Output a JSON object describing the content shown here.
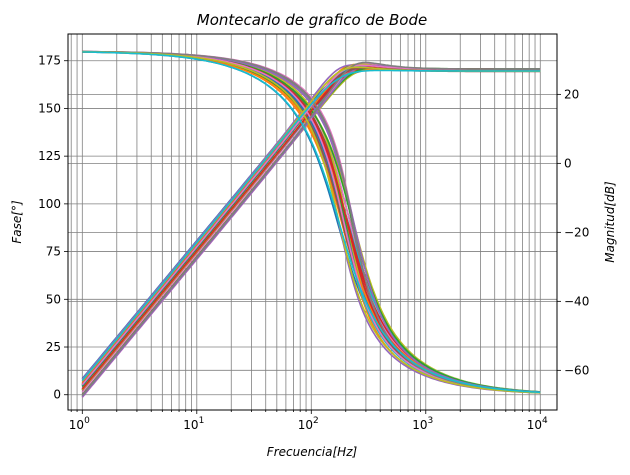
{
  "chart_data": {
    "type": "line",
    "title": "Montecarlo de grafico de Bode",
    "xlabel": "Frecuencia[Hz]",
    "ylabel_left": "Fase[°]",
    "ylabel_right": "Magnitud[dB]",
    "xscale": "log",
    "xlim": [
      0.75,
      14000
    ],
    "ylim_left": [
      -8,
      189
    ],
    "ylim_right": [
      -71.5,
      37.5
    ],
    "x_ticks": [
      {
        "value": 1,
        "base": "10",
        "exp": "0"
      },
      {
        "value": 10,
        "base": "10",
        "exp": "1"
      },
      {
        "value": 100,
        "base": "10",
        "exp": "2"
      },
      {
        "value": 1000,
        "base": "10",
        "exp": "3"
      },
      {
        "value": 10000,
        "base": "10",
        "exp": "4"
      }
    ],
    "y_left_ticks": [
      "0",
      "25",
      "50",
      "75",
      "100",
      "125",
      "150",
      "175"
    ],
    "y_right_ticks": [
      "−60",
      "−40",
      "−20",
      "0",
      "20"
    ],
    "grid": true,
    "legend": "none",
    "series_palette": [
      "#1f77b4",
      "#ff7f0e",
      "#2ca02c",
      "#d62728",
      "#9467bd",
      "#8c564b",
      "#e377c2",
      "#7f7f7f",
      "#bcbd22",
      "#17becf"
    ],
    "phase_series": {
      "axis": "left",
      "description_points": [
        {
          "x": 1,
          "y": 180
        },
        {
          "x": 10,
          "y": 177.5
        },
        {
          "x": 30,
          "y": 172
        },
        {
          "x": 70,
          "y": 158
        },
        {
          "x": 120,
          "y": 130
        },
        {
          "x": 160,
          "y": 90
        },
        {
          "x": 200,
          "y": 55
        },
        {
          "x": 250,
          "y": 30
        },
        {
          "x": 500,
          "y": 12
        },
        {
          "x": 1000,
          "y": 6
        },
        {
          "x": 10000,
          "y": 1
        }
      ],
      "center_frequency_range_hz": [
        170,
        240
      ]
    },
    "magnitude_series": {
      "axis": "right",
      "description_points": [
        {
          "x": 1,
          "y": -64
        },
        {
          "x": 10,
          "y": -24
        },
        {
          "x": 100,
          "y": 16
        },
        {
          "x": 210,
          "y": 33
        },
        {
          "x": 300,
          "y": 30
        },
        {
          "x": 1000,
          "y": 27
        },
        {
          "x": 10000,
          "y": 27
        }
      ],
      "low_frequency_spread_db": [
        -66,
        -62
      ],
      "peak_range_db": [
        28,
        35
      ]
    },
    "monte_carlo_runs": 30
  }
}
